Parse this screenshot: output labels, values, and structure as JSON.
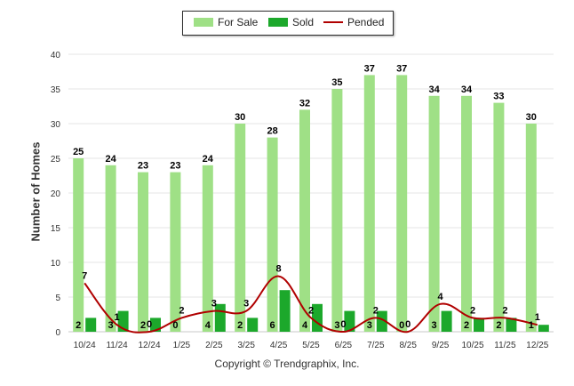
{
  "legend": {
    "for_sale": "For Sale",
    "sold": "Sold",
    "pended": "Pended"
  },
  "colors": {
    "for_sale": "#9fe086",
    "sold": "#1ca82b",
    "pended": "#b00000"
  },
  "footer": {
    "copyright": "Copyright © Trendgraphix, Inc."
  },
  "chart_data": {
    "type": "bar",
    "title": "",
    "xlabel": "",
    "ylabel": "Number of Homes",
    "ylim": [
      0,
      40
    ],
    "yticks": [
      0,
      5,
      10,
      15,
      20,
      25,
      30,
      35,
      40
    ],
    "grid": true,
    "legend_position": "top-center",
    "categories": [
      "10/24",
      "11/24",
      "12/24",
      "1/25",
      "2/25",
      "3/25",
      "4/25",
      "5/25",
      "6/25",
      "7/25",
      "8/25",
      "9/25",
      "10/25",
      "11/25",
      "12/25"
    ],
    "series": [
      {
        "name": "For Sale",
        "type": "bar",
        "values": [
          25,
          24,
          23,
          23,
          24,
          30,
          28,
          32,
          35,
          37,
          37,
          34,
          34,
          33,
          30
        ]
      },
      {
        "name": "Sold",
        "type": "bar",
        "values": [
          2,
          3,
          2,
          0,
          4,
          2,
          6,
          4,
          3,
          3,
          0,
          3,
          2,
          2,
          1
        ]
      },
      {
        "name": "Pended",
        "type": "line",
        "values": [
          7,
          1,
          0,
          2,
          3,
          3,
          8,
          2,
          0,
          2,
          0,
          4,
          2,
          2,
          1
        ]
      }
    ]
  }
}
